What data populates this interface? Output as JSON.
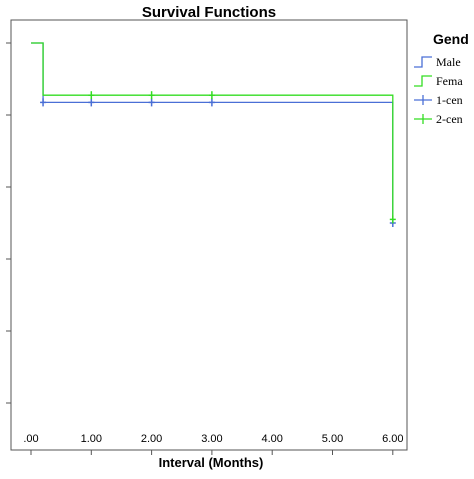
{
  "chart_data": {
    "type": "line",
    "step": true,
    "title": "Survival Functions",
    "xlabel": "Interval (Months)",
    "ylabel": "",
    "xlim": [
      -0.25,
      6.25
    ],
    "ylim": [
      0.0,
      1.05
    ],
    "x_ticks": [
      0,
      1,
      2,
      3,
      4,
      5,
      6
    ],
    "x_tick_labels": [
      ".00",
      "1.00",
      "2.00",
      "3.00",
      "4.00",
      "5.00",
      "6.00"
    ],
    "y_ticks": [
      0.0,
      0.2,
      0.4,
      0.6,
      0.8,
      1.0
    ],
    "legend": {
      "title": "Gend",
      "placement": "right",
      "entries": [
        "Male",
        "Fema",
        "1-cen",
        "2-cen"
      ]
    },
    "series": [
      {
        "name": "Male",
        "color": "#4a6fd6",
        "x": [
          0,
          0.2,
          6.0
        ],
        "y": [
          1.0,
          0.835,
          0.5
        ],
        "censored_x": [
          0.2,
          1.0,
          2.0,
          3.0,
          6.0
        ],
        "censored_y": [
          0.835,
          0.835,
          0.835,
          0.835,
          0.5
        ]
      },
      {
        "name": "Fema",
        "color": "#33dd22",
        "x": [
          0,
          0.2,
          6.0
        ],
        "y": [
          1.0,
          0.855,
          0.51
        ],
        "censored_x": [
          1.0,
          2.0,
          3.0,
          6.0
        ],
        "censored_y": [
          0.855,
          0.855,
          0.855,
          0.51
        ]
      }
    ]
  }
}
